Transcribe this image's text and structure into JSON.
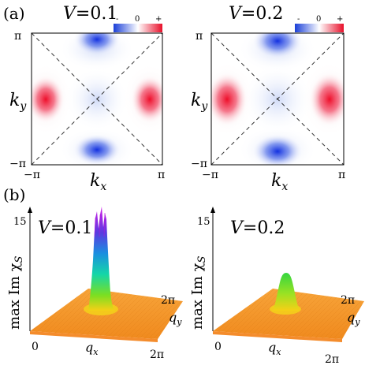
{
  "figure": {
    "panel_a_label": "(a)",
    "panel_b_label": "(b)"
  },
  "colorbar": {
    "minus": "-",
    "zero": "0",
    "plus": "+",
    "colors": [
      "#1a3fd8",
      "#ffffff",
      "#e8102a"
    ]
  },
  "panel_a": [
    {
      "title_var": "V",
      "title_val": "=0.1",
      "xtick_left": "−π",
      "xtick_right": "π",
      "ytick_top": "π",
      "ytick_bottom": "−π",
      "xlabel_main": "k",
      "xlabel_sub": "x",
      "ylabel_main": "k",
      "ylabel_sub": "y"
    },
    {
      "title_var": "V",
      "title_val": "=0.2",
      "xtick_left": "−π",
      "xtick_right": "π",
      "ytick_top": "π",
      "ytick_bottom": "−π",
      "xlabel_main": "k",
      "xlabel_sub": "x",
      "ylabel_main": "k",
      "ylabel_sub": "y"
    }
  ],
  "panel_b": [
    {
      "title_var": "V",
      "title_val": "=0.1",
      "zlabel": "max Im χ",
      "zlabel_sub": "S",
      "ztick": "15",
      "origin": "0",
      "qx_end": "2π",
      "qy_end": "2π",
      "qx_main": "q",
      "qx_sub": "x",
      "qy_main": "q",
      "qy_sub": "y"
    },
    {
      "title_var": "V",
      "title_val": "=0.2",
      "zlabel": "max Im χ",
      "zlabel_sub": "S",
      "ztick": "15",
      "origin": "0",
      "qx_end": "2π",
      "qy_end": "2π",
      "qx_main": "q",
      "qx_sub": "x",
      "qy_main": "q",
      "qy_sub": "y"
    }
  ],
  "chart_data": [
    {
      "type": "heatmap",
      "title": "V=0.1",
      "xlabel": "k_x",
      "ylabel": "k_y",
      "xlim": [
        "−π",
        "π"
      ],
      "ylim": [
        "−π",
        "π"
      ],
      "features": [
        {
          "kx": -1.0,
          "ky": 0.0,
          "sign": "+",
          "intensity": 1.0
        },
        {
          "kx": 1.0,
          "ky": 0.0,
          "sign": "+",
          "intensity": 1.0
        },
        {
          "kx": 0.0,
          "ky": 1.0,
          "sign": "-",
          "intensity": 1.0
        },
        {
          "kx": 0.0,
          "ky": -1.0,
          "sign": "-",
          "intensity": 1.0
        }
      ]
    },
    {
      "type": "heatmap",
      "title": "V=0.2",
      "xlabel": "k_x",
      "ylabel": "k_y",
      "xlim": [
        "−π",
        "π"
      ],
      "ylim": [
        "−π",
        "π"
      ],
      "features": [
        {
          "kx": -1.0,
          "ky": 0.0,
          "sign": "+",
          "intensity": 0.9
        },
        {
          "kx": 1.0,
          "ky": 0.0,
          "sign": "+",
          "intensity": 0.9
        },
        {
          "kx": 0.0,
          "ky": 1.0,
          "sign": "-",
          "intensity": 0.85
        },
        {
          "kx": 0.0,
          "ky": -1.0,
          "sign": "-",
          "intensity": 0.85
        }
      ]
    },
    {
      "type": "area",
      "title": "V=0.1",
      "zlabel": "max Im χ_S",
      "zlim": [
        0,
        15
      ],
      "peak_q": [
        "π",
        "π"
      ],
      "peak_value": 15,
      "baseline": 0.5
    },
    {
      "type": "area",
      "title": "V=0.2",
      "zlabel": "max Im χ_S",
      "zlim": [
        0,
        15
      ],
      "peak_q": [
        "π",
        "π"
      ],
      "peak_value": 4.5,
      "baseline": 0.5
    }
  ]
}
